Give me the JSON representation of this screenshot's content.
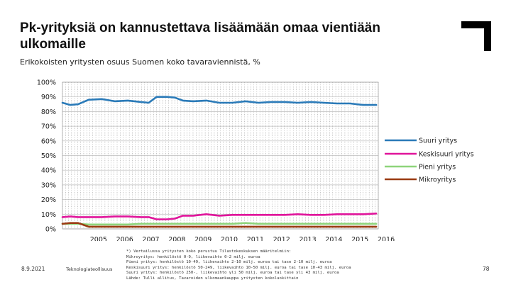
{
  "slide": {
    "title": "Pk-yrityksiä on kannustettava lisäämään omaa vientiään ulkomaille",
    "subtitle": "Erikokoisten yritysten osuus Suomen koko tavaraviennistä, %",
    "logo_icon": "corner-bracket-logo",
    "footer": {
      "date": "8.9.2021",
      "org": "Teknologiateollisuus",
      "page": "78",
      "notes": [
        "*) Vertailussa yritysten koko perustuu Tilastokeskuksen määritelmiin:",
        "Mikroyritys: henkilöstö 0-9, liikevaihto 0-2 milj. euroa",
        "Pieni yritys: henkilöstö 10-49, liikevaihto 2-10 milj. euroa tai tase 2-10 milj. euroa",
        "Keskisuuri yritys: henkilöstö 50-249, liikevaihto 10-50 milj. euroa tai tase 10-43 milj. euroa",
        "Suuri yritys: henkilöstö 250-, liikevaihto yli 50 milj. euroa tai tase yli 43 milj. euroa",
        "Lähde: Tulli allitus, Tavaroiden ulkomaankauppa yritysten kokoluokittain"
      ]
    }
  },
  "chart_data": {
    "type": "line",
    "title": "Erikokoisten yritysten osuus Suomen koko tavaraviennistä, %",
    "xlabel": "",
    "ylabel": "",
    "ylim": [
      0,
      100
    ],
    "yticks": [
      0,
      10,
      20,
      30,
      40,
      50,
      60,
      70,
      80,
      90,
      100
    ],
    "ytick_labels": [
      "0%",
      "10%",
      "20%",
      "30%",
      "40%",
      "50%",
      "60%",
      "70%",
      "80%",
      "90%",
      "100%"
    ],
    "xtick_labels": [
      "2005",
      "2006",
      "2007",
      "2008",
      "2009",
      "2010",
      "2011",
      "2012",
      "2013",
      "2014",
      "2015",
      "2016"
    ],
    "xlim": [
      2004.0,
      2016.08
    ],
    "grid": true,
    "legend_position": "right",
    "colors": {
      "suuri": "#2a7ab8",
      "keskisuuri": "#e0149b",
      "pieni": "#8ed47a",
      "mikro": "#9a3b12"
    },
    "series": [
      {
        "name": "Suuri yritys",
        "key": "suuri",
        "x": [
          2004.0,
          2004.3,
          2004.6,
          2005.0,
          2005.5,
          2006.0,
          2006.5,
          2007.0,
          2007.3,
          2007.6,
          2008.0,
          2008.3,
          2008.6,
          2009.0,
          2009.5,
          2010.0,
          2010.5,
          2011.0,
          2011.5,
          2012.0,
          2012.5,
          2013.0,
          2013.5,
          2014.0,
          2014.5,
          2015.0,
          2015.5,
          2016.0
        ],
        "values": [
          86,
          84.5,
          85,
          88,
          88.5,
          87,
          87.5,
          86.5,
          86,
          90,
          90,
          89.5,
          87.5,
          87,
          87.5,
          86,
          86,
          87,
          86,
          86.5,
          86.5,
          86,
          86.5,
          86,
          85.5,
          85.5,
          84.5,
          84.5
        ]
      },
      {
        "name": "Keskisuuri yritys",
        "key": "keskisuuri",
        "x": [
          2004.0,
          2004.3,
          2004.6,
          2005.0,
          2005.5,
          2006.0,
          2006.5,
          2007.0,
          2007.3,
          2007.6,
          2008.0,
          2008.3,
          2008.6,
          2009.0,
          2009.5,
          2010.0,
          2010.5,
          2011.0,
          2011.5,
          2012.0,
          2012.5,
          2013.0,
          2013.5,
          2014.0,
          2014.5,
          2015.0,
          2015.5,
          2016.0
        ],
        "values": [
          8,
          8.5,
          8,
          8,
          8,
          8.5,
          8.5,
          8,
          8,
          6.5,
          6.5,
          7,
          9,
          9,
          10,
          9,
          9.5,
          9.5,
          9.5,
          9.5,
          9.5,
          10,
          9.5,
          9.5,
          10,
          10,
          10,
          10.5
        ]
      },
      {
        "name": "Pieni yritys",
        "key": "pieni",
        "x": [
          2004.0,
          2004.3,
          2004.6,
          2005.0,
          2005.5,
          2006.0,
          2006.5,
          2007.0,
          2007.3,
          2007.6,
          2008.0,
          2008.3,
          2008.6,
          2009.0,
          2009.5,
          2010.0,
          2010.5,
          2011.0,
          2011.5,
          2012.0,
          2012.5,
          2013.0,
          2013.5,
          2014.0,
          2014.5,
          2015.0,
          2015.5,
          2016.0
        ],
        "values": [
          3.5,
          3.5,
          3.5,
          3,
          3,
          3,
          3,
          3.5,
          3.5,
          3.5,
          3.5,
          3.5,
          3.5,
          3.5,
          3.5,
          3.5,
          3.5,
          4,
          3.5,
          3.5,
          3.5,
          3.5,
          3.5,
          3.5,
          3.5,
          3.5,
          3.5,
          3.5
        ]
      },
      {
        "name": "Mikroyritys",
        "key": "mikro",
        "x": [
          2004.0,
          2004.3,
          2004.6,
          2005.0,
          2005.5,
          2006.0,
          2006.5,
          2007.0,
          2007.3,
          2007.6,
          2008.0,
          2008.3,
          2008.6,
          2009.0,
          2009.5,
          2010.0,
          2010.5,
          2011.0,
          2011.5,
          2012.0,
          2012.5,
          2013.0,
          2013.5,
          2014.0,
          2014.5,
          2015.0,
          2015.5,
          2016.0
        ],
        "values": [
          3.5,
          4,
          4,
          1.5,
          1.5,
          1.5,
          1.5,
          1.5,
          1.5,
          1.5,
          1.5,
          1.5,
          1.5,
          1.5,
          1.5,
          1.5,
          1.5,
          1.5,
          1.5,
          1.5,
          1.5,
          1.5,
          1.5,
          1.5,
          1.5,
          1.5,
          1.5,
          1.5
        ]
      }
    ]
  }
}
